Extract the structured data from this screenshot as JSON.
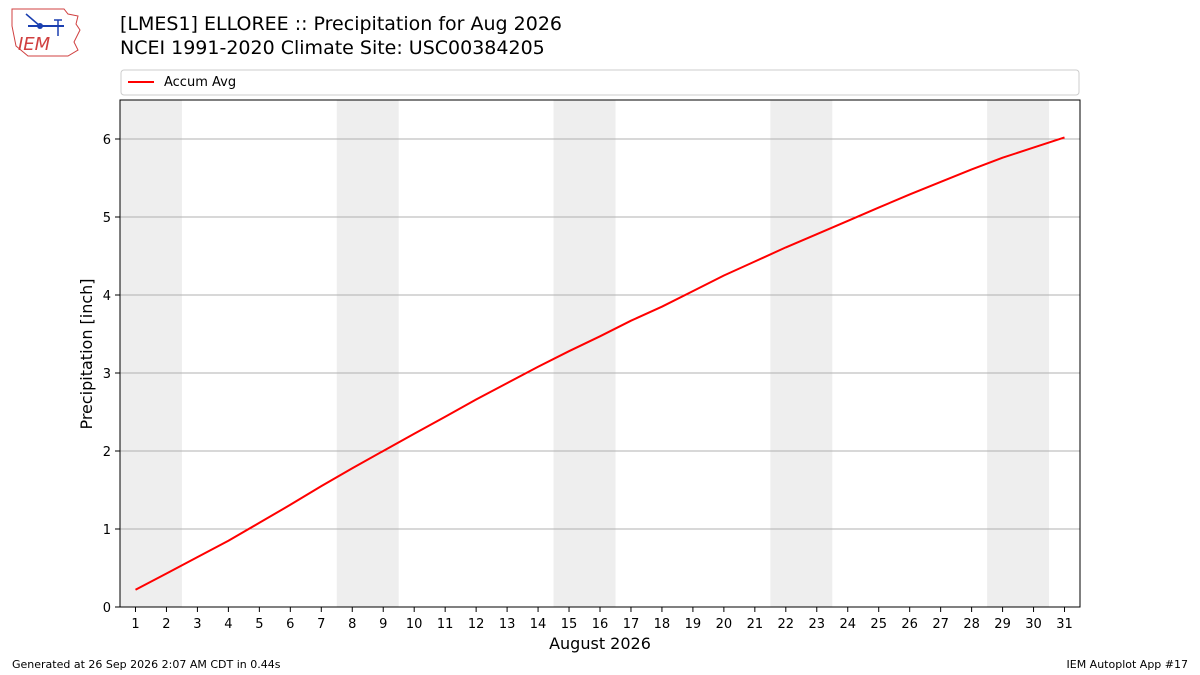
{
  "header": {
    "title_line1": "[LMES1] ELLOREE :: Precipitation for Aug 2026",
    "title_line2": "NCEI 1991-2020 Climate Site: USC00384205"
  },
  "logo": {
    "text": "IEM",
    "icon": "iem-logo-icon"
  },
  "footer": {
    "generated": "Generated at 26 Sep 2026 2:07 AM CDT in 0.44s",
    "app": "IEM Autoplot App #17"
  },
  "colors": {
    "series": "#ff0000",
    "weekend_band": "#eeeeee",
    "grid": "#b0b0b0"
  },
  "chart_data": {
    "type": "line",
    "xlabel": "August 2026",
    "ylabel": "Precipitation [inch]",
    "xlim": [
      0.5,
      31.5
    ],
    "ylim": [
      0,
      6.5
    ],
    "x_ticks": [
      1,
      2,
      3,
      4,
      5,
      6,
      7,
      8,
      9,
      10,
      11,
      12,
      13,
      14,
      15,
      16,
      17,
      18,
      19,
      20,
      21,
      22,
      23,
      24,
      25,
      26,
      27,
      28,
      29,
      30,
      31
    ],
    "y_ticks": [
      0,
      1,
      2,
      3,
      4,
      5,
      6
    ],
    "grid": "horizontal",
    "legend": {
      "placement": "top",
      "entries": [
        "Accum Avg"
      ]
    },
    "shaded_days": [
      [
        1,
        2
      ],
      [
        8,
        9
      ],
      [
        15,
        16
      ],
      [
        22,
        23
      ],
      [
        29,
        30
      ]
    ],
    "series": [
      {
        "name": "Accum Avg",
        "color": "#ff0000",
        "x": [
          1,
          2,
          3,
          4,
          5,
          6,
          7,
          8,
          9,
          10,
          11,
          12,
          13,
          14,
          15,
          16,
          17,
          18,
          19,
          20,
          21,
          22,
          23,
          24,
          25,
          26,
          27,
          28,
          29,
          30,
          31
        ],
        "values": [
          0.22,
          0.43,
          0.64,
          0.85,
          1.08,
          1.31,
          1.55,
          1.78,
          2.0,
          2.22,
          2.44,
          2.66,
          2.87,
          3.08,
          3.28,
          3.47,
          3.67,
          3.85,
          4.05,
          4.25,
          4.43,
          4.61,
          4.78,
          4.95,
          5.12,
          5.29,
          5.45,
          5.61,
          5.76,
          5.89,
          6.02
        ]
      }
    ]
  }
}
